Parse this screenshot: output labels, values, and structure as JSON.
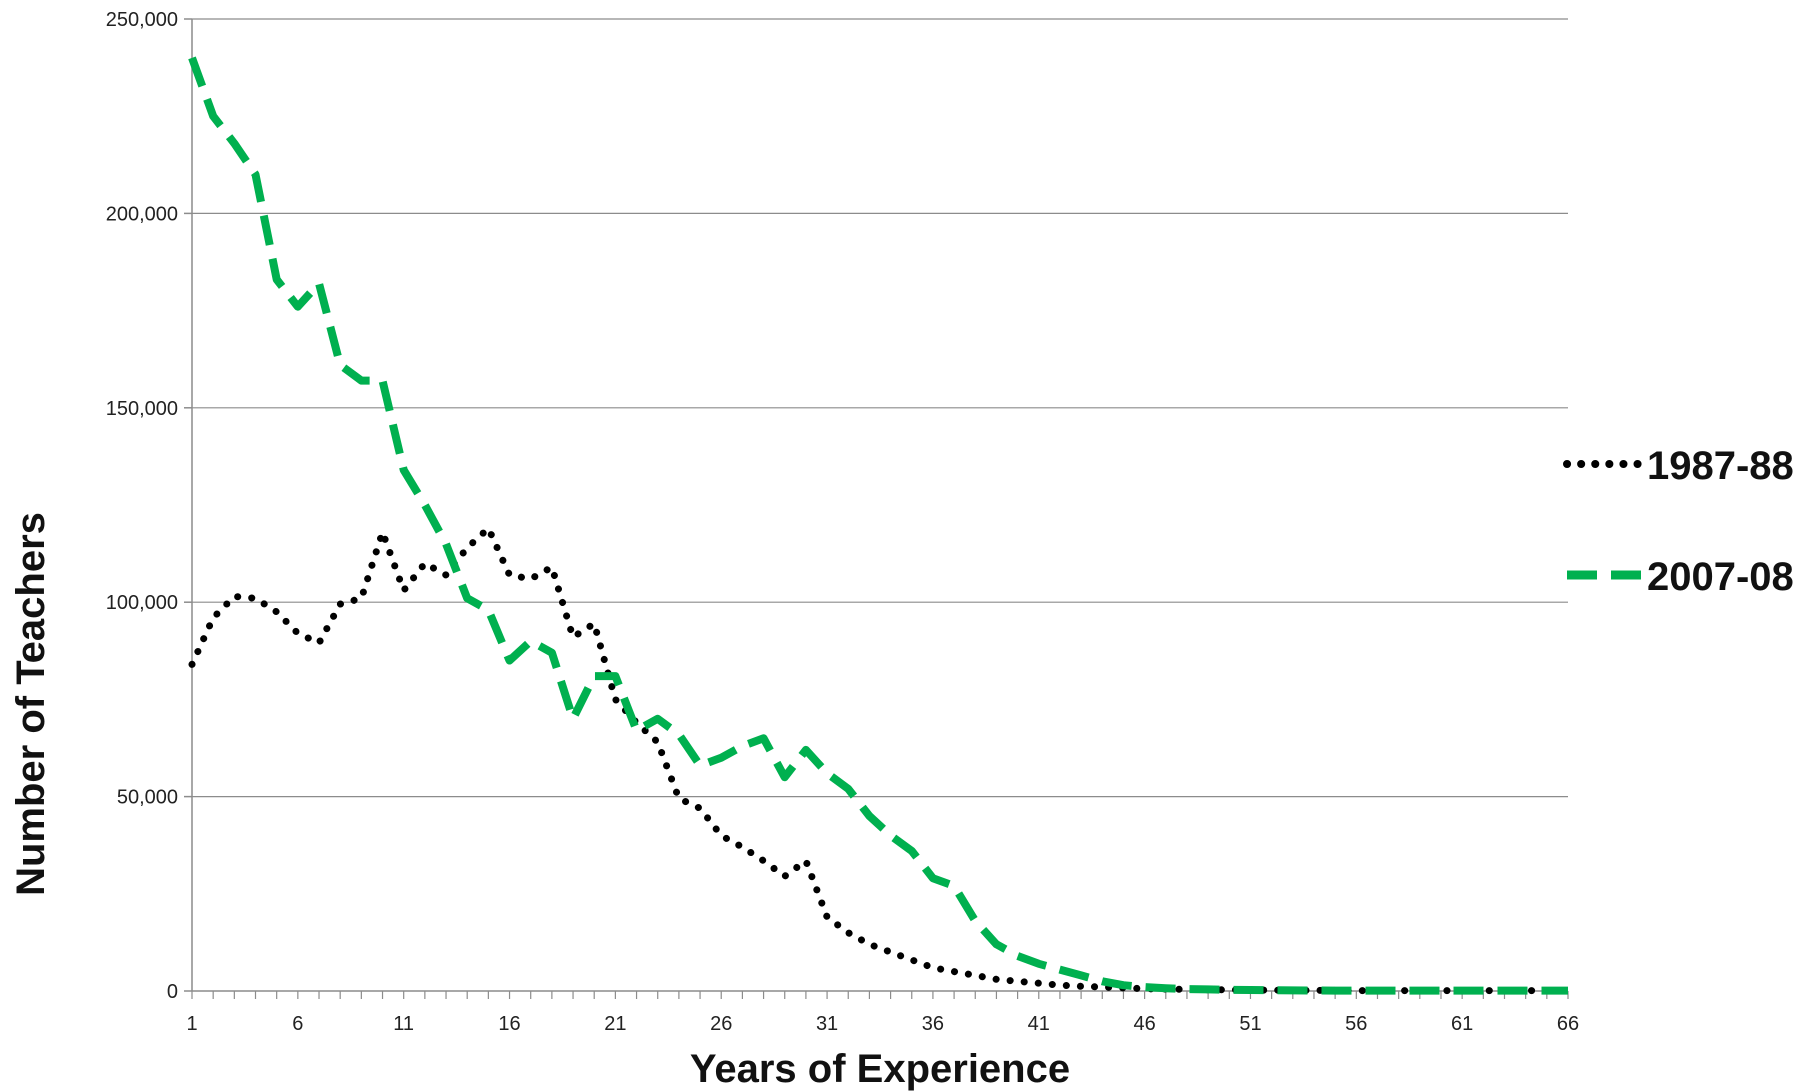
{
  "chart_data": {
    "type": "line",
    "title": "",
    "xlabel": "Years of Experience",
    "ylabel": "Number of Teachers",
    "xlim": [
      1,
      66
    ],
    "ylim": [
      0,
      250000
    ],
    "x_ticks": [
      "1",
      "6",
      "11",
      "16",
      "21",
      "26",
      "31",
      "36",
      "41",
      "46",
      "51",
      "56",
      "61",
      "66"
    ],
    "y_ticks": [
      "0",
      "50,000",
      "100,000",
      "150,000",
      "200,000",
      "250,000"
    ],
    "grid": true,
    "legend_position": "right",
    "x": [
      1,
      2,
      3,
      4,
      5,
      6,
      7,
      8,
      9,
      10,
      11,
      12,
      13,
      14,
      15,
      16,
      17,
      18,
      19,
      20,
      21,
      22,
      23,
      24,
      25,
      26,
      27,
      28,
      29,
      30,
      31,
      32,
      33,
      34,
      35,
      36,
      37,
      38,
      39,
      40,
      41,
      42,
      43,
      44,
      45,
      46,
      47,
      48,
      49,
      50,
      51,
      52,
      53,
      54,
      55,
      56,
      57,
      58,
      59,
      60,
      61,
      62,
      63,
      64,
      65,
      66
    ],
    "series": [
      {
        "name": "1987-88",
        "color": "#000000",
        "style": "dotted",
        "values": [
          84000,
          96000,
          101500,
          101000,
          97500,
          92000,
          89500,
          99500,
          101000,
          118000,
          103000,
          110000,
          107000,
          114000,
          119000,
          107000,
          106000,
          109000,
          91000,
          94500,
          75000,
          69000,
          64000,
          49500,
          47000,
          40000,
          37000,
          33500,
          29500,
          33500,
          19000,
          15000,
          12000,
          10000,
          8000,
          6000,
          5000,
          4000,
          3000,
          2500,
          2000,
          1500,
          1200,
          1000,
          800,
          600,
          500,
          400,
          300,
          300,
          250,
          200,
          200,
          150,
          150,
          100,
          100,
          100,
          100,
          100,
          100,
          100,
          100,
          100,
          100,
          100
        ]
      },
      {
        "name": "2007-08",
        "color": "#00b04f",
        "style": "dashed",
        "values": [
          240000,
          225000,
          218000,
          210000,
          183000,
          176000,
          182000,
          161000,
          157000,
          157000,
          134000,
          125000,
          115000,
          101000,
          98000,
          85000,
          90000,
          87000,
          70000,
          81000,
          81000,
          67000,
          70000,
          66000,
          58000,
          60000,
          63000,
          65000,
          55000,
          62000,
          56000,
          52000,
          45000,
          40000,
          36000,
          29000,
          27000,
          18000,
          12000,
          9000,
          7000,
          5500,
          4000,
          2500,
          1500,
          1000,
          700,
          500,
          400,
          300,
          250,
          200,
          150,
          120,
          100,
          100,
          100,
          100,
          100,
          100,
          100,
          100,
          100,
          100,
          100,
          100
        ]
      }
    ]
  }
}
